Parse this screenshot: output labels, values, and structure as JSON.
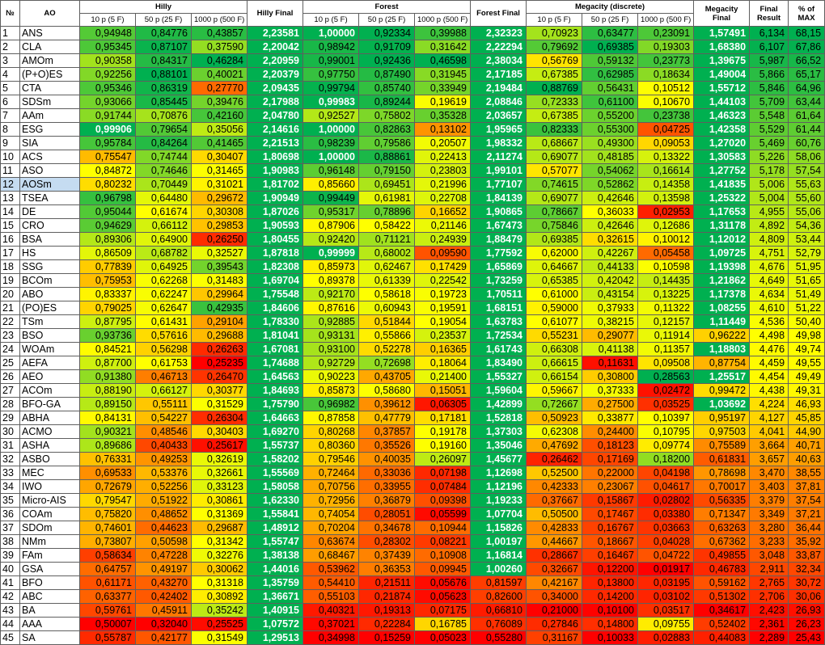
{
  "header": {
    "no": "№",
    "ao": "AO",
    "hilly": "Hilly",
    "hilly_final": "Hilly Final",
    "forest": "Forest",
    "forest_final": "Forest Final",
    "megacity": "Megacity (discrete)",
    "megacity_final": "Megacity Final",
    "final_result": "Final Result",
    "pct_max": "% of MAX",
    "sub": [
      "10 p (5 F)",
      "50 p (25 F)",
      "1000 p (500 F)"
    ]
  },
  "selected_row": 12,
  "color_scale": {
    "low": "#ff0000",
    "mid": "#ffff00",
    "high": "#00b050",
    "best_value": "#00b050"
  },
  "rows": [
    {
      "no": "1",
      "ao": "ANS",
      "v": [
        "0,94948",
        "0,84776",
        "0,43857",
        "2,23581",
        "1,00000",
        "0,92334",
        "0,39988",
        "2,32323",
        "0,70923",
        "0,63477",
        "0,23091",
        "1,57491",
        "6,134",
        "68,15"
      ]
    },
    {
      "no": "2",
      "ao": "CLA",
      "v": [
        "0,95345",
        "0,87107",
        "0,37590",
        "2,20042",
        "0,98942",
        "0,91709",
        "0,31642",
        "2,22294",
        "0,79692",
        "0,69385",
        "0,19303",
        "1,68380",
        "6,107",
        "67,86"
      ]
    },
    {
      "no": "3",
      "ao": "AMOm",
      "v": [
        "0,90358",
        "0,84317",
        "0,46284",
        "2,20959",
        "0,99001",
        "0,92436",
        "0,46598",
        "2,38034",
        "0,56769",
        "0,59132",
        "0,23773",
        "1,39675",
        "5,987",
        "66,52"
      ]
    },
    {
      "no": "4",
      "ao": "(P+O)ES",
      "v": [
        "0,92256",
        "0,88101",
        "0,40021",
        "2,20379",
        "0,97750",
        "0,87490",
        "0,31945",
        "2,17185",
        "0,67385",
        "0,62985",
        "0,18634",
        "1,49004",
        "5,866",
        "65,17"
      ]
    },
    {
      "no": "5",
      "ao": "CTA",
      "v": [
        "0,95346",
        "0,86319",
        "0,27770",
        "2,09435",
        "0,99794",
        "0,85740",
        "0,33949",
        "2,19484",
        "0,88769",
        "0,56431",
        "0,10512",
        "1,55712",
        "5,846",
        "64,96"
      ]
    },
    {
      "no": "6",
      "ao": "SDSm",
      "v": [
        "0,93066",
        "0,85445",
        "0,39476",
        "2,17988",
        "0,99983",
        "0,89244",
        "0,19619",
        "2,08846",
        "0,72333",
        "0,61100",
        "0,10670",
        "1,44103",
        "5,709",
        "63,44"
      ]
    },
    {
      "no": "7",
      "ao": "AAm",
      "v": [
        "0,91744",
        "0,70876",
        "0,42160",
        "2,04780",
        "0,92527",
        "0,75802",
        "0,35328",
        "2,03657",
        "0,67385",
        "0,55200",
        "0,23738",
        "1,46323",
        "5,548",
        "61,64"
      ]
    },
    {
      "no": "8",
      "ao": "ESG",
      "v": [
        "0,99906",
        "0,79654",
        "0,35056",
        "2,14616",
        "1,00000",
        "0,82863",
        "0,13102",
        "1,95965",
        "0,82333",
        "0,55300",
        "0,04725",
        "1,42358",
        "5,529",
        "61,44"
      ]
    },
    {
      "no": "9",
      "ao": "SIA",
      "v": [
        "0,95784",
        "0,84264",
        "0,41465",
        "2,21513",
        "0,98239",
        "0,79586",
        "0,20507",
        "1,98332",
        "0,68667",
        "0,49300",
        "0,09053",
        "1,27020",
        "5,469",
        "60,76"
      ]
    },
    {
      "no": "10",
      "ao": "ACS",
      "v": [
        "0,75547",
        "0,74744",
        "0,30407",
        "1,80698",
        "1,00000",
        "0,88861",
        "0,22413",
        "2,11274",
        "0,69077",
        "0,48185",
        "0,13322",
        "1,30583",
        "5,226",
        "58,06"
      ]
    },
    {
      "no": "11",
      "ao": "ASO",
      "v": [
        "0,84872",
        "0,74646",
        "0,31465",
        "1,90983",
        "0,96148",
        "0,79150",
        "0,23803",
        "1,99101",
        "0,57077",
        "0,54062",
        "0,16614",
        "1,27752",
        "5,178",
        "57,54"
      ]
    },
    {
      "no": "12",
      "ao": "AOSm",
      "v": [
        "0,80232",
        "0,70449",
        "0,31021",
        "1,81702",
        "0,85660",
        "0,69451",
        "0,21996",
        "1,77107",
        "0,74615",
        "0,52862",
        "0,14358",
        "1,41835",
        "5,006",
        "55,63"
      ]
    },
    {
      "no": "13",
      "ao": "TSEA",
      "v": [
        "0,96798",
        "0,64480",
        "0,29672",
        "1,90949",
        "0,99449",
        "0,61981",
        "0,22708",
        "1,84139",
        "0,69077",
        "0,42646",
        "0,13598",
        "1,25322",
        "5,004",
        "55,60"
      ]
    },
    {
      "no": "14",
      "ao": "DE",
      "v": [
        "0,95044",
        "0,61674",
        "0,30308",
        "1,87026",
        "0,95317",
        "0,78896",
        "0,16652",
        "1,90865",
        "0,78667",
        "0,36033",
        "0,02953",
        "1,17653",
        "4,955",
        "55,06"
      ]
    },
    {
      "no": "15",
      "ao": "CRO",
      "v": [
        "0,94629",
        "0,66112",
        "0,29853",
        "1,90593",
        "0,87906",
        "0,58422",
        "0,21146",
        "1,67473",
        "0,75846",
        "0,42646",
        "0,12686",
        "1,31178",
        "4,892",
        "54,36"
      ]
    },
    {
      "no": "16",
      "ao": "BSA",
      "v": [
        "0,89306",
        "0,64900",
        "0,26250",
        "1,80455",
        "0,92420",
        "0,71121",
        "0,24939",
        "1,88479",
        "0,69385",
        "0,32615",
        "0,10012",
        "1,12012",
        "4,809",
        "53,44"
      ]
    },
    {
      "no": "17",
      "ao": "HS",
      "v": [
        "0,86509",
        "0,68782",
        "0,32527",
        "1,87818",
        "0,99999",
        "0,68002",
        "0,09590",
        "1,77592",
        "0,62000",
        "0,42267",
        "0,05458",
        "1,09725",
        "4,751",
        "52,79"
      ]
    },
    {
      "no": "18",
      "ao": "SSG",
      "v": [
        "0,77839",
        "0,64925",
        "0,39543",
        "1,82308",
        "0,85973",
        "0,62467",
        "0,17429",
        "1,65869",
        "0,64667",
        "0,44133",
        "0,10598",
        "1,19398",
        "4,676",
        "51,95"
      ]
    },
    {
      "no": "19",
      "ao": "BCOm",
      "v": [
        "0,75953",
        "0,62268",
        "0,31483",
        "1,69704",
        "0,89378",
        "0,61339",
        "0,22542",
        "1,73259",
        "0,65385",
        "0,42042",
        "0,14435",
        "1,21862",
        "4,649",
        "51,65"
      ]
    },
    {
      "no": "20",
      "ao": "ABO",
      "v": [
        "0,83337",
        "0,62247",
        "0,29964",
        "1,75548",
        "0,92170",
        "0,58618",
        "0,19723",
        "1,70511",
        "0,61000",
        "0,43154",
        "0,13225",
        "1,17378",
        "4,634",
        "51,49"
      ]
    },
    {
      "no": "21",
      "ao": "(PO)ES",
      "v": [
        "0,79025",
        "0,62647",
        "0,42935",
        "1,84606",
        "0,87616",
        "0,60943",
        "0,19591",
        "1,68151",
        "0,59000",
        "0,37933",
        "0,11322",
        "1,08255",
        "4,610",
        "51,22"
      ]
    },
    {
      "no": "22",
      "ao": "TSm",
      "v": [
        "0,87795",
        "0,61431",
        "0,29104",
        "1,78330",
        "0,92885",
        "0,51844",
        "0,19054",
        "1,63783",
        "0,61077",
        "0,38215",
        "0,12157",
        "1,11449",
        "4,536",
        "50,40"
      ]
    },
    {
      "no": "23",
      "ao": "BSO",
      "v": [
        "0,93736",
        "0,57616",
        "0,29688",
        "1,81041",
        "0,93131",
        "0,55866",
        "0,23537",
        "1,72534",
        "0,55231",
        "0,29077",
        "0,11914",
        "0,96222",
        "4,498",
        "49,98"
      ]
    },
    {
      "no": "24",
      "ao": "WOAm",
      "v": [
        "0,84521",
        "0,56298",
        "0,26263",
        "1,67081",
        "0,93100",
        "0,52278",
        "0,16365",
        "1,61743",
        "0,66308",
        "0,41138",
        "0,11357",
        "1,18803",
        "4,476",
        "49,74"
      ]
    },
    {
      "no": "25",
      "ao": "AEFA",
      "v": [
        "0,87700",
        "0,61753",
        "0,25235",
        "1,74688",
        "0,92729",
        "0,72698",
        "0,18064",
        "1,83490",
        "0,66615",
        "0,11631",
        "0,09508",
        "0,87754",
        "4,459",
        "49,55"
      ]
    },
    {
      "no": "26",
      "ao": "AEO",
      "v": [
        "0,91380",
        "0,46713",
        "0,26470",
        "1,64563",
        "0,90223",
        "0,43705",
        "0,21400",
        "1,55327",
        "0,66154",
        "0,30800",
        "0,28563",
        "1,25517",
        "4,454",
        "49,49"
      ]
    },
    {
      "no": "27",
      "ao": "ACOm",
      "v": [
        "0,88190",
        "0,66127",
        "0,30377",
        "1,84693",
        "0,85873",
        "0,58680",
        "0,15051",
        "1,59604",
        "0,59667",
        "0,37333",
        "0,02472",
        "0,99472",
        "4,438",
        "49,31"
      ]
    },
    {
      "no": "28",
      "ao": "BFO-GA",
      "v": [
        "0,89150",
        "0,55111",
        "0,31529",
        "1,75790",
        "0,96982",
        "0,39612",
        "0,06305",
        "1,42899",
        "0,72667",
        "0,27500",
        "0,03525",
        "1,03692",
        "4,224",
        "46,93"
      ]
    },
    {
      "no": "29",
      "ao": "ABHA",
      "v": [
        "0,84131",
        "0,54227",
        "0,26304",
        "1,64663",
        "0,87858",
        "0,47779",
        "0,17181",
        "1,52818",
        "0,50923",
        "0,33877",
        "0,10397",
        "0,95197",
        "4,127",
        "45,85"
      ]
    },
    {
      "no": "30",
      "ao": "ACMO",
      "v": [
        "0,90321",
        "0,48546",
        "0,30403",
        "1,69270",
        "0,80268",
        "0,37857",
        "0,19178",
        "1,37303",
        "0,62308",
        "0,24400",
        "0,10795",
        "0,97503",
        "4,041",
        "44,90"
      ]
    },
    {
      "no": "31",
      "ao": "ASHA",
      "v": [
        "0,89686",
        "0,40433",
        "0,25617",
        "1,55737",
        "0,80360",
        "0,35526",
        "0,19160",
        "1,35046",
        "0,47692",
        "0,18123",
        "0,09774",
        "0,75589",
        "3,664",
        "40,71"
      ]
    },
    {
      "no": "32",
      "ao": "ASBO",
      "v": [
        "0,76331",
        "0,49253",
        "0,32619",
        "1,58202",
        "0,79546",
        "0,40035",
        "0,26097",
        "1,45677",
        "0,26462",
        "0,17169",
        "0,18200",
        "0,61831",
        "3,657",
        "40,63"
      ]
    },
    {
      "no": "33",
      "ao": "MEC",
      "v": [
        "0,69533",
        "0,53376",
        "0,32661",
        "1,55569",
        "0,72464",
        "0,33036",
        "0,07198",
        "1,12698",
        "0,52500",
        "0,22000",
        "0,04198",
        "0,78698",
        "3,470",
        "38,55"
      ]
    },
    {
      "no": "34",
      "ao": "IWO",
      "v": [
        "0,72679",
        "0,52256",
        "0,33123",
        "1,58058",
        "0,70756",
        "0,33955",
        "0,07484",
        "1,12196",
        "0,42333",
        "0,23067",
        "0,04617",
        "0,70017",
        "3,403",
        "37,81"
      ]
    },
    {
      "no": "35",
      "ao": "Micro-AIS",
      "v": [
        "0,79547",
        "0,51922",
        "0,30861",
        "1,62330",
        "0,72956",
        "0,36879",
        "0,09398",
        "1,19233",
        "0,37667",
        "0,15867",
        "0,02802",
        "0,56335",
        "3,379",
        "37,54"
      ]
    },
    {
      "no": "36",
      "ao": "COAm",
      "v": [
        "0,75820",
        "0,48652",
        "0,31369",
        "1,55841",
        "0,74054",
        "0,28051",
        "0,05599",
        "1,07704",
        "0,50500",
        "0,17467",
        "0,03380",
        "0,71347",
        "3,349",
        "37,21"
      ]
    },
    {
      "no": "37",
      "ao": "SDOm",
      "v": [
        "0,74601",
        "0,44623",
        "0,29687",
        "1,48912",
        "0,70204",
        "0,34678",
        "0,10944",
        "1,15826",
        "0,42833",
        "0,16767",
        "0,03663",
        "0,63263",
        "3,280",
        "36,44"
      ]
    },
    {
      "no": "38",
      "ao": "NMm",
      "v": [
        "0,73807",
        "0,50598",
        "0,31342",
        "1,55747",
        "0,63674",
        "0,28302",
        "0,08221",
        "1,00197",
        "0,44667",
        "0,18667",
        "0,04028",
        "0,67362",
        "3,233",
        "35,92"
      ]
    },
    {
      "no": "39",
      "ao": "FAm",
      "v": [
        "0,58634",
        "0,47228",
        "0,32276",
        "1,38138",
        "0,68467",
        "0,37439",
        "0,10908",
        "1,16814",
        "0,28667",
        "0,16467",
        "0,04722",
        "0,49855",
        "3,048",
        "33,87"
      ]
    },
    {
      "no": "40",
      "ao": "GSA",
      "v": [
        "0,64757",
        "0,49197",
        "0,30062",
        "1,44016",
        "0,53962",
        "0,36353",
        "0,09945",
        "1,00260",
        "0,32667",
        "0,12200",
        "0,01917",
        "0,46783",
        "2,911",
        "32,34"
      ]
    },
    {
      "no": "41",
      "ao": "BFO",
      "v": [
        "0,61171",
        "0,43270",
        "0,31318",
        "1,35759",
        "0,54410",
        "0,21511",
        "0,05676",
        "0,81597",
        "0,42167",
        "0,13800",
        "0,03195",
        "0,59162",
        "2,765",
        "30,72"
      ]
    },
    {
      "no": "42",
      "ao": "ABC",
      "v": [
        "0,63377",
        "0,42402",
        "0,30892",
        "1,36671",
        "0,55103",
        "0,21874",
        "0,05623",
        "0,82600",
        "0,34000",
        "0,14200",
        "0,03102",
        "0,51302",
        "2,706",
        "30,06"
      ]
    },
    {
      "no": "43",
      "ao": "BA",
      "v": [
        "0,59761",
        "0,45911",
        "0,35242",
        "1,40915",
        "0,40321",
        "0,19313",
        "0,07175",
        "0,66810",
        "0,21000",
        "0,10100",
        "0,03517",
        "0,34617",
        "2,423",
        "26,93"
      ]
    },
    {
      "no": "44",
      "ao": "AAA",
      "v": [
        "0,50007",
        "0,32040",
        "0,25525",
        "1,07572",
        "0,37021",
        "0,22284",
        "0,16785",
        "0,76089",
        "0,27846",
        "0,14800",
        "0,09755",
        "0,52402",
        "2,361",
        "26,23"
      ]
    },
    {
      "no": "45",
      "ao": "SA",
      "v": [
        "0,55787",
        "0,42177",
        "0,31549",
        "1,29513",
        "0,34998",
        "0,15259",
        "0,05023",
        "0,55280",
        "0,31167",
        "0,10033",
        "0,02883",
        "0,44083",
        "2,289",
        "25,43"
      ]
    }
  ]
}
